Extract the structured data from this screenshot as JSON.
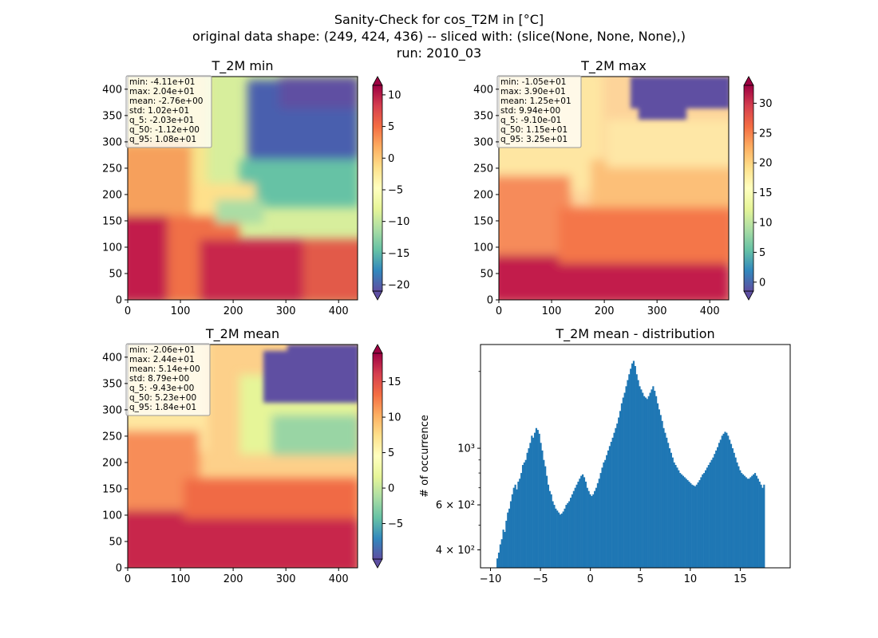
{
  "figure": {
    "title_line1": "Sanity-Check for cos_T2M in [°C]",
    "title_line2": "original data shape: (249, 424, 436) -- sliced with: (slice(None, None, None),)",
    "title_line3": "run: 2010_03"
  },
  "chart_data": [
    {
      "type": "heatmap",
      "title": "T_2M min",
      "xlim": [
        0,
        436
      ],
      "ylim": [
        0,
        424
      ],
      "xticks": [
        0,
        100,
        200,
        300,
        400
      ],
      "yticks": [
        0,
        50,
        100,
        150,
        200,
        250,
        300,
        350,
        400
      ],
      "colorbar": {
        "colormap": "Spectral_r",
        "vmin": -21,
        "vmax": 11.5,
        "ticks": [
          10,
          5,
          0,
          -5,
          -10,
          -15,
          -20
        ],
        "extend": "both"
      },
      "stats": [
        "min: -4.11e+01",
        "max: 2.04e+01",
        "mean: -2.76e+00",
        "std: 1.02e+01",
        "q_5: -2.03e+01",
        "q_50: -1.12e+00",
        "q_95: 1.08e+01"
      ]
    },
    {
      "type": "heatmap",
      "title": "T_2M max",
      "xlim": [
        0,
        436
      ],
      "ylim": [
        0,
        424
      ],
      "xticks": [
        0,
        100,
        200,
        300,
        400
      ],
      "yticks": [
        0,
        50,
        100,
        150,
        200,
        250,
        300,
        350,
        400
      ],
      "colorbar": {
        "colormap": "Spectral_r",
        "vmin": -1.5,
        "vmax": 33,
        "ticks": [
          30,
          25,
          20,
          15,
          10,
          5,
          0
        ],
        "extend": "both"
      },
      "stats": [
        "min: -1.05e+01",
        "max: 3.90e+01",
        "mean: 1.25e+01",
        "std: 9.94e+00",
        "q_5: -9.10e-01",
        "q_50: 1.15e+01",
        "q_95: 3.25e+01"
      ]
    },
    {
      "type": "heatmap",
      "title": "T_2M mean",
      "xlim": [
        0,
        436
      ],
      "ylim": [
        0,
        424
      ],
      "xticks": [
        0,
        100,
        200,
        300,
        400
      ],
      "yticks": [
        0,
        50,
        100,
        150,
        200,
        250,
        300,
        350,
        400
      ],
      "colorbar": {
        "colormap": "Spectral_r",
        "vmin": -10,
        "vmax": 19,
        "ticks": [
          15,
          10,
          5,
          0,
          -5
        ],
        "extend": "both"
      },
      "stats": [
        "min: -2.06e+01",
        "max: 2.44e+01",
        "mean: 5.14e+00",
        "std: 8.79e+00",
        "q_5: -9.43e+00",
        "q_50: 5.23e+00",
        "q_95: 1.84e+01"
      ]
    },
    {
      "type": "bar",
      "title": "T_2M mean - distribution",
      "ylabel": "# of occurrence",
      "xlabel": "",
      "yscale": "log",
      "xlim": [
        -11,
        20
      ],
      "ylim": [
        340,
        2550
      ],
      "xticks": [
        -10,
        -5,
        0,
        5,
        10,
        15
      ],
      "xtick_labels": [
        "−10",
        "−5",
        "0",
        "5",
        "10",
        "15"
      ],
      "yticks": [
        400,
        600,
        1000
      ],
      "ytick_labels": [
        "4 × 10²",
        "6 × 10²",
        "10³"
      ],
      "color": "#1f77b4",
      "bin_width": 0.15,
      "bin_start": -9.4,
      "values": [
        370,
        390,
        420,
        440,
        480,
        470,
        520,
        560,
        580,
        620,
        660,
        700,
        720,
        690,
        740,
        760,
        800,
        860,
        880,
        900,
        960,
        1000,
        1050,
        1120,
        1100,
        1150,
        1200,
        1180,
        1140,
        1050,
        980,
        900,
        850,
        780,
        720,
        680,
        660,
        620,
        600,
        580,
        570,
        560,
        550,
        555,
        565,
        580,
        600,
        610,
        620,
        640,
        660,
        680,
        700,
        720,
        740,
        760,
        780,
        790,
        770,
        740,
        700,
        680,
        660,
        650,
        660,
        680,
        700,
        730,
        760,
        800,
        840,
        880,
        900,
        940,
        980,
        1020,
        1060,
        1100,
        1150,
        1200,
        1250,
        1320,
        1400,
        1500,
        1580,
        1650,
        1750,
        1850,
        1950,
        2050,
        2150,
        2200,
        2100,
        1950,
        1850,
        1750,
        1700,
        1650,
        1600,
        1580,
        1560,
        1600,
        1650,
        1700,
        1750,
        1680,
        1600,
        1500,
        1420,
        1350,
        1280,
        1200,
        1150,
        1100,
        1050,
        1000,
        960,
        920,
        880,
        860,
        840,
        820,
        800,
        790,
        780,
        770,
        760,
        750,
        740,
        730,
        720,
        715,
        710,
        720,
        735,
        750,
        770,
        790,
        800,
        820,
        840,
        860,
        880,
        900,
        920,
        950,
        980,
        1010,
        1050,
        1080,
        1120,
        1140,
        1160,
        1150,
        1120,
        1080,
        1040,
        1000,
        960,
        920,
        880,
        850,
        820,
        800,
        790,
        780,
        770,
        760,
        760,
        770,
        780,
        790,
        800,
        780,
        760,
        740,
        720,
        700,
        720
      ]
    }
  ]
}
